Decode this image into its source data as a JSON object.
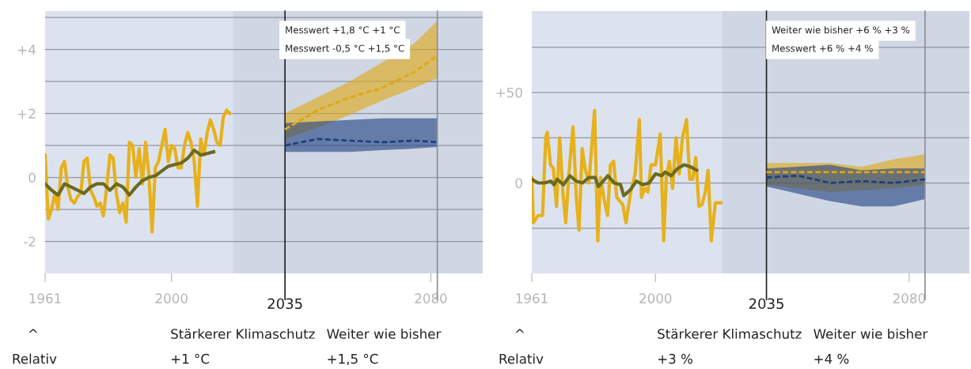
{
  "chart_data": [
    {
      "type": "line",
      "xlim": [
        1961,
        2096
      ],
      "ylim": [
        -3,
        5.2
      ],
      "xticks": [
        1961,
        2000,
        2080
      ],
      "yticks": [
        {
          "value": -2,
          "label": "-2"
        },
        {
          "value": -1,
          "label": null
        },
        0,
        {
          "value": 1,
          "label": null
        },
        {
          "value": 2,
          "label": "+2"
        },
        {
          "value": 3,
          "label": null
        },
        {
          "value": 4,
          "label": "+4"
        },
        {
          "value": 5,
          "label": null
        }
      ],
      "grid": "y",
      "bands": [
        {
          "axis": "x",
          "from": 2019,
          "to": 2096,
          "color": "#d0d7e4"
        }
      ],
      "ref_lines": [
        {
          "axis": "x",
          "value": 2035,
          "label": "2035",
          "color": "#222222"
        },
        {
          "axis": "x",
          "value": 2082,
          "label": null,
          "color": "#8a8f99"
        }
      ],
      "series": [
        {
          "color": "#e6b11c",
          "x": [
            1961,
            1962,
            1963,
            1964,
            1965,
            1966,
            1967,
            1968,
            1969,
            1970,
            1971,
            1972,
            1973,
            1974,
            1975,
            1976,
            1977,
            1978,
            1979,
            1980,
            1981,
            1982,
            1983,
            1984,
            1985,
            1986,
            1987,
            1988,
            1989,
            1990,
            1991,
            1992,
            1993,
            1994,
            1995,
            1996,
            1997,
            1998,
            1999,
            2000,
            2001,
            2002,
            2003,
            2004,
            2005,
            2006,
            2007,
            2008,
            2009,
            2010,
            2011,
            2012,
            2013,
            2014,
            2015,
            2016,
            2017,
            2018
          ],
          "values": [
            0.7,
            -1.3,
            -1.0,
            -0.5,
            -1.0,
            0.3,
            0.5,
            -0.3,
            -0.7,
            -0.8,
            -0.6,
            -0.5,
            0.5,
            0.6,
            -0.4,
            -0.6,
            -0.9,
            -0.8,
            -1.2,
            -0.3,
            0.7,
            0.6,
            -0.5,
            -1.1,
            -0.8,
            -1.4,
            1.1,
            1.0,
            0.0,
            0.9,
            -0.2,
            1.1,
            0.1,
            -1.7,
            0.3,
            0.5,
            1.0,
            1.5,
            0.5,
            1.0,
            0.9,
            0.3,
            0.3,
            1.0,
            1.4,
            1.1,
            0.5,
            -0.9,
            1.2,
            0.7,
            1.4,
            1.8,
            1.5,
            1.1,
            1.0,
            1.9,
            2.1,
            2.0
          ]
        },
        {
          "color": "#6b6a1f",
          "x": [
            1961,
            1963,
            1965,
            1967,
            1969,
            1971,
            1973,
            1975,
            1977,
            1979,
            1981,
            1983,
            1985,
            1987,
            1989,
            1991,
            1993,
            1995,
            1997,
            1999,
            2001,
            2003,
            2005,
            2007,
            2009,
            2011,
            2013
          ],
          "values": [
            -0.2,
            -0.4,
            -0.55,
            -0.2,
            -0.3,
            -0.4,
            -0.5,
            -0.3,
            -0.2,
            -0.2,
            -0.4,
            -0.2,
            -0.3,
            -0.55,
            -0.3,
            -0.1,
            0.0,
            0.05,
            0.2,
            0.35,
            0.4,
            0.45,
            0.6,
            0.85,
            0.7,
            0.75,
            0.8
          ]
        },
        {
          "color": "#e0a810",
          "line_style": "dashed",
          "x": [
            2035,
            2045,
            2055,
            2065,
            2075,
            2082
          ],
          "values": [
            1.5,
            2.1,
            2.5,
            2.8,
            3.3,
            3.8
          ],
          "lower": [
            1.2,
            1.55,
            1.95,
            2.4,
            2.8,
            3.1
          ],
          "upper": [
            2.0,
            2.5,
            3.0,
            3.6,
            4.2,
            4.9
          ]
        },
        {
          "color": "#1f3f80",
          "line_style": "dashed",
          "x": [
            2035,
            2045,
            2055,
            2065,
            2075,
            2082
          ],
          "values": [
            1.0,
            1.2,
            1.15,
            1.1,
            1.15,
            1.1
          ],
          "lower": [
            0.8,
            0.8,
            0.8,
            0.85,
            0.9,
            0.95
          ],
          "upper": [
            1.7,
            1.75,
            1.8,
            1.85,
            1.85,
            1.85
          ]
        }
      ],
      "annotations": [
        "Messwert +1,8 °C +1 °C",
        "Messwert -0,5 °C +1,5 °C",
        "^",
        "Stärkerer Klimaschutz",
        "Weiter wie bisher",
        "Relativ",
        "+1 °C",
        "+1,5 °C"
      ]
    },
    {
      "type": "line",
      "xlim": [
        1961,
        2099
      ],
      "ylim": [
        -50,
        95
      ],
      "xticks": [
        1961,
        2000,
        2080
      ],
      "yticks": [
        {
          "value": -25,
          "label": null
        },
        0,
        {
          "value": 25,
          "label": null
        },
        {
          "value": 50,
          "label": "+50"
        },
        {
          "value": 75,
          "label": null
        }
      ],
      "grid": "y",
      "bands": [
        {
          "axis": "x",
          "from": 2021,
          "to": 2099,
          "color": "#d0d7e4"
        }
      ],
      "ref_lines": [
        {
          "axis": "x",
          "value": 2035,
          "label": "2035",
          "color": "#222222"
        },
        {
          "axis": "x",
          "value": 2085,
          "label": null,
          "color": "#8a8f99"
        }
      ],
      "series": [
        {
          "color": "#e6b11c",
          "x": [
            1961,
            1961.5,
            1963,
            1964.4,
            1965.4,
            1965.9,
            1966.9,
            1967.8,
            1968.8,
            1969.8,
            1970.8,
            1971.7,
            1972.7,
            1974,
            1975.1,
            1975.9,
            1976.9,
            1977.8,
            1979,
            1980.8,
            1981.8,
            1982.7,
            1983.9,
            1984.9,
            1985.8,
            1986.8,
            1987.8,
            1989.7,
            1990.7,
            1992.2,
            1993.6,
            1994.9,
            1995.6,
            1996.6,
            1997.6,
            1998.6,
            2000,
            2001.5,
            2002.6,
            2003.4,
            2004.4,
            2005.4,
            2006.5,
            2007.5,
            2008.5,
            2009.8,
            2010.8,
            2011.7,
            2012.7,
            2013.7,
            2014.7,
            2015.7,
            2016.6,
            2017.6,
            2018.9,
            2020.1,
            2020.6
          ],
          "values": [
            3,
            -22,
            -18,
            -18,
            25,
            28,
            10,
            8,
            -13,
            25,
            -5,
            -22,
            5,
            31,
            -10,
            -26,
            19,
            8,
            0,
            40,
            -32,
            3,
            -10,
            -18,
            10,
            12,
            -8,
            -12,
            -22,
            -5,
            5,
            35,
            -8,
            -3,
            -5,
            10,
            10,
            27,
            -32,
            3,
            12,
            -3,
            25,
            5,
            25,
            35,
            2,
            2,
            14,
            -13,
            -12,
            -5,
            7,
            -32,
            -11,
            -11,
            -11
          ]
        },
        {
          "color": "#6b6a1f",
          "x": [
            1961,
            1963,
            1965,
            1967,
            1968,
            1969,
            1971,
            1973,
            1975,
            1977,
            1979,
            1981,
            1982,
            1985,
            1987,
            1989,
            1990,
            1992,
            1994,
            1996,
            1998,
            2000,
            2002,
            2003,
            2005,
            2007,
            2009,
            2011,
            2013
          ],
          "values": [
            2,
            0,
            0,
            1,
            -1,
            2,
            -1,
            4,
            1,
            0,
            3,
            3,
            -2,
            4,
            0,
            -1,
            -7,
            -4,
            1,
            -1,
            0,
            5,
            4,
            6,
            4,
            8,
            10,
            9,
            7
          ]
        },
        {
          "color": "#e0a810",
          "line_style": "dashed",
          "x": [
            2035,
            2045,
            2055,
            2065,
            2075,
            2085
          ],
          "values": [
            6,
            6,
            6,
            6,
            6,
            6
          ],
          "lower": [
            -1,
            -3,
            -5,
            -4,
            -3,
            -1
          ],
          "upper": [
            11,
            11,
            11,
            9,
            13,
            16
          ]
        },
        {
          "color": "#1f3f80",
          "line_style": "dashed",
          "x": [
            2035,
            2045,
            2055,
            2065,
            2075,
            2085
          ],
          "values": [
            3,
            4,
            0,
            1,
            0,
            2
          ],
          "lower": [
            -2,
            -6,
            -10,
            -13,
            -13,
            -9
          ],
          "upper": [
            8,
            9,
            10,
            7,
            8,
            8
          ]
        }
      ],
      "annotations": [
        "Weiter wie bisher +6 % +3 %",
        "Messwert +6 % +4 %",
        "^",
        "Stärkerer Klimaschutz",
        "Weiter wie bisher",
        "Relativ",
        "+3 %",
        "+4 %"
      ]
    }
  ]
}
